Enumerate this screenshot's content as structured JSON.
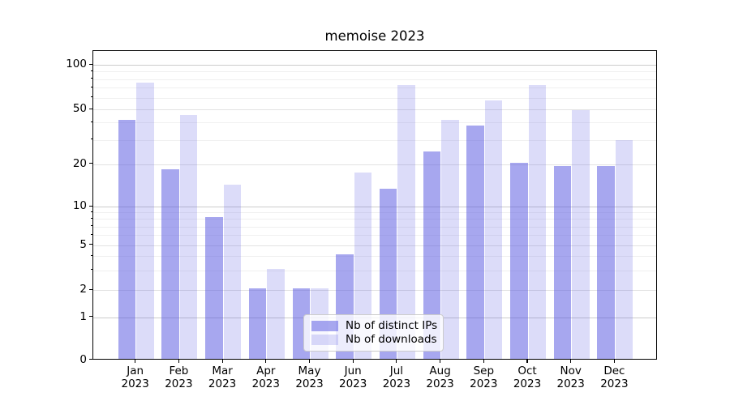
{
  "title": "memoise 2023",
  "y_axis": {
    "tick_labels": [
      "0",
      "1",
      "2",
      "5",
      "10",
      "20",
      "50",
      "100"
    ]
  },
  "x_axis": {
    "months": [
      "Jan",
      "Feb",
      "Mar",
      "Apr",
      "May",
      "Jun",
      "Jul",
      "Aug",
      "Sep",
      "Oct",
      "Nov",
      "Dec"
    ],
    "year": "2023"
  },
  "legend": {
    "items": [
      {
        "label": "Nb of distinct IPs",
        "color": "rgba(80,80,224,0.5)"
      },
      {
        "label": "Nb of downloads",
        "color": "rgba(80,80,224,0.2)"
      }
    ]
  },
  "chart_data": {
    "type": "bar",
    "title": "memoise 2023",
    "categories": [
      "Jan 2023",
      "Feb 2023",
      "Mar 2023",
      "Apr 2023",
      "May 2023",
      "Jun 2023",
      "Jul 2023",
      "Aug 2023",
      "Sep 2023",
      "Oct 2023",
      "Nov 2023",
      "Dec 2023"
    ],
    "series": [
      {
        "name": "Nb of distinct IPs",
        "color": "rgba(80,80,224,0.5)",
        "values": [
          41,
          18,
          8,
          2,
          2,
          4,
          13,
          24,
          37,
          20,
          19,
          19
        ]
      },
      {
        "name": "Nb of downloads",
        "color": "rgba(80,80,224,0.2)",
        "values": [
          74,
          44,
          14,
          3,
          2,
          17,
          71,
          41,
          56,
          71,
          48,
          29
        ]
      }
    ],
    "yscale": "log (linear segment from 0 to 1)",
    "y_ticks": [
      0,
      1,
      2,
      5,
      10,
      20,
      50,
      100
    ],
    "y_minor_ticks": [
      3,
      4,
      6,
      7,
      8,
      9,
      30,
      40,
      60,
      70,
      80,
      90
    ],
    "ylim": [
      0,
      125
    ],
    "grid": true,
    "legend_position": "lower center",
    "xlabel": "",
    "ylabel": ""
  }
}
